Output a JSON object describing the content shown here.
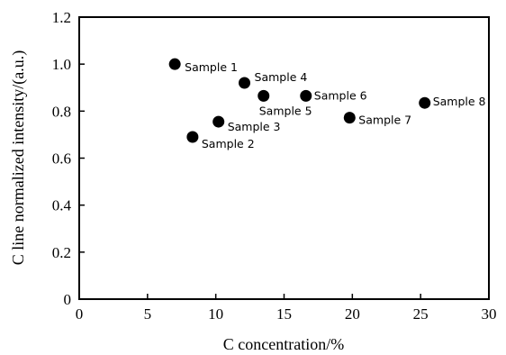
{
  "chart_data": {
    "type": "scatter",
    "title": "",
    "xlabel": "C concentration/%",
    "ylabel": "C line normalized intensity/(a.u.)",
    "xlim": [
      0,
      30
    ],
    "ylim": [
      0,
      1.2
    ],
    "x_ticks": [
      "0",
      "5",
      "10",
      "15",
      "20",
      "25",
      "30"
    ],
    "y_ticks": [
      "0",
      "0.2",
      "0.4",
      "0.6",
      "0.8",
      "1.0",
      "1.2"
    ],
    "grid": false,
    "legend": "none",
    "marker_color": "#000000",
    "series": [
      {
        "points": [
          {
            "x": 7.0,
            "y": 1.0,
            "label": "Sample 1"
          },
          {
            "x": 8.3,
            "y": 0.69,
            "label": "Sample 2"
          },
          {
            "x": 10.2,
            "y": 0.755,
            "label": "Sample 3"
          },
          {
            "x": 12.1,
            "y": 0.92,
            "label": "Sample 4"
          },
          {
            "x": 13.5,
            "y": 0.865,
            "label": "Sample 5"
          },
          {
            "x": 16.6,
            "y": 0.865,
            "label": "Sample 6"
          },
          {
            "x": 19.8,
            "y": 0.772,
            "label": "Sample 7"
          },
          {
            "x": 25.3,
            "y": 0.835,
            "label": "Sample 8"
          }
        ]
      }
    ]
  }
}
